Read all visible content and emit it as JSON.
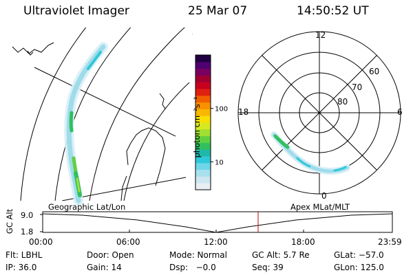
{
  "header": {
    "title": "Ultraviolet Imager",
    "date": "25 Mar 07",
    "time": "14:50:52 UT"
  },
  "colorbar": {
    "label": "photon cm⁻²s⁻¹",
    "ticks": [
      "100",
      "10"
    ],
    "tick_values": [
      100,
      10
    ],
    "range": [
      3,
      1000
    ],
    "scale": "log",
    "colors": [
      "#e8eef4",
      "#cde6f0",
      "#a8e0ee",
      "#6ed6e8",
      "#2ec8d8",
      "#20b8a8",
      "#30c060",
      "#60d040",
      "#a0e030",
      "#d8e820",
      "#f8e000",
      "#f8b800",
      "#f89000",
      "#f06000",
      "#e02010",
      "#c80020",
      "#a00030",
      "#7a0060",
      "#500070",
      "#200040"
    ]
  },
  "geo_panel": {
    "label": "Geographic Lat/Lon"
  },
  "polar_panel": {
    "label": "Apex MLat/MLT",
    "mlt_labels": [
      "12",
      "18",
      "6",
      "0"
    ],
    "lat_labels": [
      "60",
      "70",
      "80"
    ]
  },
  "timeline": {
    "ylabel": "GC Alt",
    "y_ticks": [
      "9.0",
      "1.8"
    ],
    "x_ticks": [
      "00:00",
      "06:00",
      "12:00",
      "18:00",
      "23:59"
    ],
    "marker_time": "14:50",
    "marker_color": "#c00000"
  },
  "info": {
    "row1": [
      "Flt: LBHL",
      "Door: Open",
      "Mode: Normal",
      "GC Alt: 5.7 Re",
      "GLat: −57.0"
    ],
    "row2": [
      "IP: 36.0",
      "Gain: 14",
      "Dsp:   −0.0",
      "Seq: 39",
      "GLon: 125.0"
    ]
  }
}
